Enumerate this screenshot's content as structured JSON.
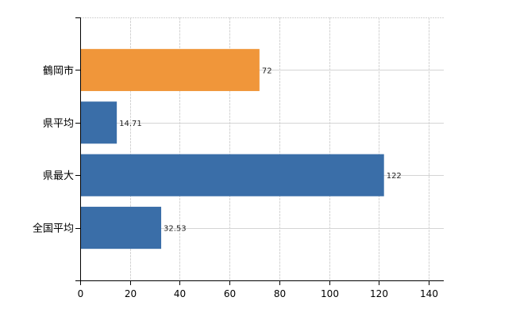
{
  "chart_data": {
    "type": "bar",
    "orientation": "horizontal",
    "categories": [
      "鶴岡市",
      "県平均",
      "県最大",
      "全国平均"
    ],
    "values": [
      72,
      14.71,
      122,
      32.53
    ],
    "data_labels": [
      "72",
      "14.71",
      "122",
      "32.53"
    ],
    "bar_colors": [
      "#f0963a",
      "#3a6ea8",
      "#3a6ea8",
      "#3a6ea8"
    ],
    "xlim": [
      0,
      146
    ],
    "xticks": [
      0,
      20,
      40,
      60,
      80,
      100,
      120,
      140
    ],
    "grid": true,
    "title": "",
    "xlabel": "",
    "ylabel": ""
  }
}
